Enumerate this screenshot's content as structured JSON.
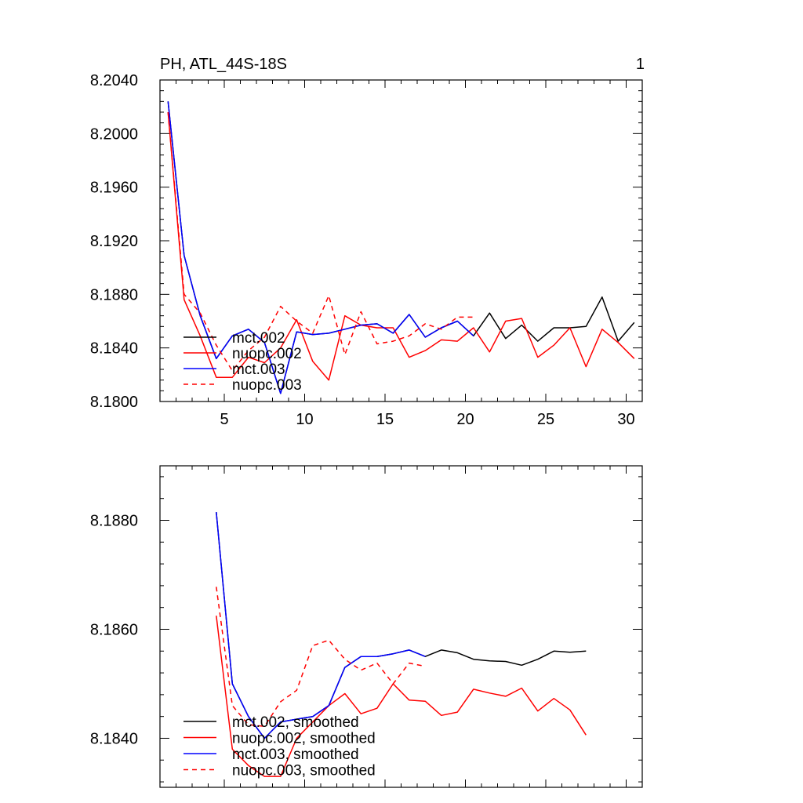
{
  "chart_data": [
    {
      "type": "line",
      "title": "PH, ATL_44S-18S",
      "panel_label": "1",
      "xlabel": "",
      "ylabel": "",
      "xlim": [
        1,
        31
      ],
      "ylim": [
        8.18,
        8.204
      ],
      "xticks": [
        5,
        10,
        15,
        20,
        25,
        30
      ],
      "xtick_labels": [
        "5",
        "10",
        "15",
        "20",
        "25",
        "30"
      ],
      "yticks": [
        8.18,
        8.184,
        8.188,
        8.192,
        8.196,
        8.2,
        8.204
      ],
      "ytick_labels": [
        "8.1800",
        "8.1840",
        "8.1880",
        "8.1920",
        "8.1960",
        "8.2000",
        "8.2040"
      ],
      "legend_position": "bottom-left",
      "series": [
        {
          "name": "mct.002",
          "color": "#000000",
          "dash": "solid",
          "x": [
            1.5,
            2.5,
            3.5,
            4.5,
            5.5,
            6.5,
            7.5,
            8.5,
            9.5,
            10.5,
            11.5,
            12.5,
            13.5,
            14.5,
            15.5,
            16.5,
            17.5,
            18.5,
            19.5,
            20.5,
            21.5,
            22.5,
            23.5,
            24.5,
            25.5,
            26.5,
            27.5,
            28.5,
            29.5,
            30.5
          ],
          "values": [
            8.2024,
            8.1909,
            8.1864,
            8.1832,
            8.1849,
            8.1854,
            8.1844,
            8.1806,
            8.1852,
            8.185,
            8.1851,
            8.1854,
            8.1857,
            8.1858,
            8.1851,
            8.1865,
            8.1848,
            8.1855,
            8.186,
            8.1849,
            8.1866,
            8.1847,
            8.1857,
            8.1845,
            8.1855,
            8.1855,
            8.1856,
            8.1878,
            8.1845,
            8.1859
          ]
        },
        {
          "name": "nuopc.002",
          "color": "#ff0000",
          "dash": "solid",
          "x": [
            1.5,
            2.5,
            3.5,
            4.5,
            5.5,
            6.5,
            7.5,
            8.5,
            9.5,
            10.5,
            11.5,
            12.5,
            13.5,
            14.5,
            15.5,
            16.5,
            17.5,
            18.5,
            19.5,
            20.5,
            21.5,
            22.5,
            23.5,
            24.5,
            25.5,
            26.5,
            27.5,
            28.5,
            29.5,
            30.5
          ],
          "values": [
            8.2016,
            8.1876,
            8.1849,
            8.1818,
            8.1818,
            8.1833,
            8.1829,
            8.184,
            8.1861,
            8.183,
            8.1816,
            8.1864,
            8.1857,
            8.1855,
            8.1855,
            8.1833,
            8.1838,
            8.1846,
            8.1845,
            8.1855,
            8.1837,
            8.186,
            8.1862,
            8.1833,
            8.1842,
            8.1855,
            8.1826,
            8.1854,
            8.1844,
            8.1832
          ]
        },
        {
          "name": "mct.003",
          "color": "#0000ff",
          "dash": "solid",
          "x": [
            1.5,
            2.5,
            3.5,
            4.5,
            5.5,
            6.5,
            7.5,
            8.5,
            9.5,
            10.5,
            11.5,
            12.5,
            13.5,
            14.5,
            15.5,
            16.5,
            17.5,
            18.5,
            19.5,
            20.5
          ],
          "values": [
            8.2024,
            8.1909,
            8.1864,
            8.1832,
            8.1849,
            8.1854,
            8.1844,
            8.1806,
            8.1852,
            8.185,
            8.1851,
            8.1854,
            8.1857,
            8.1858,
            8.1851,
            8.1865,
            8.1848,
            8.1855,
            8.186,
            8.1849
          ]
        },
        {
          "name": "nuopc.003",
          "color": "#ff0000",
          "dash": "dashed",
          "x": [
            1.5,
            2.5,
            3.5,
            4.5,
            5.5,
            6.5,
            7.5,
            8.5,
            9.5,
            10.5,
            11.5,
            12.5,
            13.5,
            14.5,
            15.5,
            16.5,
            17.5,
            18.5,
            19.5,
            20.5
          ],
          "values": [
            8.2016,
            8.188,
            8.1866,
            8.1842,
            8.1823,
            8.1838,
            8.1848,
            8.1871,
            8.186,
            8.1851,
            8.1879,
            8.1835,
            8.1867,
            8.1843,
            8.1845,
            8.1849,
            8.1858,
            8.1854,
            8.1863,
            8.1863
          ]
        }
      ]
    },
    {
      "type": "line",
      "title": "",
      "xlabel": "",
      "ylabel": "",
      "xlim": [
        1,
        31
      ],
      "ylim": [
        8.1831,
        8.189
      ],
      "xticks": [
        5,
        10,
        15,
        20,
        25,
        30
      ],
      "xtick_labels": [],
      "yticks": [
        8.184,
        8.186,
        8.188
      ],
      "ytick_labels": [
        "8.1840",
        "8.1860",
        "8.1880"
      ],
      "legend_position": "bottom-left",
      "series": [
        {
          "name": "mct.002, smoothed",
          "color": "#000000",
          "dash": "solid",
          "x": [
            4.5,
            5.5,
            6.5,
            7.5,
            8.5,
            9.5,
            10.5,
            11.5,
            12.5,
            13.5,
            14.5,
            15.5,
            16.5,
            17.5,
            18.5,
            19.5,
            20.5,
            21.5,
            22.5,
            23.5,
            24.5,
            25.5,
            26.5,
            27.5
          ],
          "values": [
            8.18815,
            8.185,
            8.1844,
            8.184,
            8.1843,
            8.18435,
            8.1844,
            8.1846,
            8.1853,
            8.1855,
            8.1855,
            8.18555,
            8.18562,
            8.1855,
            8.18562,
            8.18557,
            8.18545,
            8.18542,
            8.18541,
            8.18534,
            8.18545,
            8.1856,
            8.18558,
            8.1856
          ]
        },
        {
          "name": "nuopc.002, smoothed",
          "color": "#ff0000",
          "dash": "solid",
          "x": [
            4.5,
            5.5,
            6.5,
            7.5,
            8.5,
            9.5,
            10.5,
            11.5,
            12.5,
            13.5,
            14.5,
            15.5,
            16.5,
            17.5,
            18.5,
            19.5,
            20.5,
            21.5,
            22.5,
            23.5,
            24.5,
            25.5,
            26.5,
            27.5
          ],
          "values": [
            8.18625,
            8.1838,
            8.1835,
            8.1833,
            8.1833,
            8.184,
            8.1843,
            8.1846,
            8.18482,
            8.18445,
            8.18455,
            8.185,
            8.1847,
            8.18468,
            8.18442,
            8.18448,
            8.1849,
            8.18483,
            8.18477,
            8.18492,
            8.1845,
            8.18473,
            8.18452,
            8.18406
          ]
        },
        {
          "name": "mct.003, smoothed",
          "color": "#0000ff",
          "dash": "solid",
          "x": [
            4.5,
            5.5,
            6.5,
            7.5,
            8.5,
            9.5,
            10.5,
            11.5,
            12.5,
            13.5,
            14.5,
            15.5,
            16.5,
            17.5
          ],
          "values": [
            8.18815,
            8.185,
            8.1844,
            8.184,
            8.1843,
            8.18435,
            8.1844,
            8.1846,
            8.1853,
            8.1855,
            8.1855,
            8.18555,
            8.18562,
            8.1855
          ]
        },
        {
          "name": "nuopc.003, smoothed",
          "color": "#ff0000",
          "dash": "dashed",
          "x": [
            4.5,
            5.5,
            6.5,
            7.5,
            8.5,
            9.5,
            10.5,
            11.5,
            12.5,
            13.5,
            14.5,
            15.5,
            16.5,
            17.5
          ],
          "values": [
            8.18678,
            8.1846,
            8.18425,
            8.18422,
            8.18467,
            8.18488,
            8.1857,
            8.1858,
            8.18545,
            8.18525,
            8.18538,
            8.185,
            8.18538,
            8.18532
          ]
        }
      ]
    }
  ]
}
